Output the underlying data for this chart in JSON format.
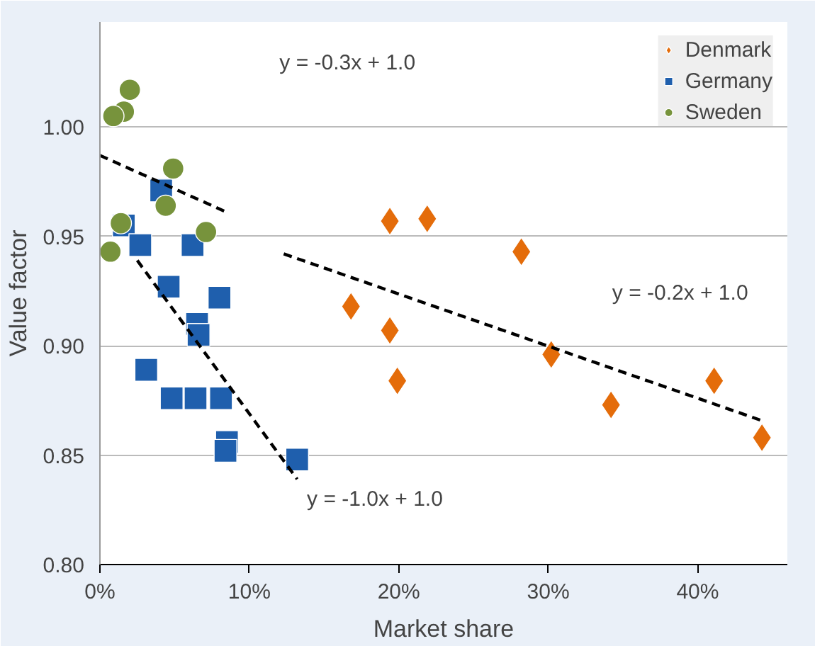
{
  "chart_data": {
    "type": "scatter",
    "xlabel": "Market share",
    "ylabel": "Value factor",
    "xlim": [
      0,
      46
    ],
    "ylim": [
      0.8,
      1.048
    ],
    "xticks": [
      {
        "value": 0,
        "label": "0%"
      },
      {
        "value": 10,
        "label": "10%"
      },
      {
        "value": 20,
        "label": "20%"
      },
      {
        "value": 30,
        "label": "30%"
      },
      {
        "value": 40,
        "label": "40%"
      }
    ],
    "yticks": [
      {
        "value": 0.8,
        "label": "0.80"
      },
      {
        "value": 0.85,
        "label": "0.85"
      },
      {
        "value": 0.9,
        "label": "0.90"
      },
      {
        "value": 0.95,
        "label": "0.95"
      },
      {
        "value": 1.0,
        "label": "1.00"
      }
    ],
    "grid": "y",
    "legend": "top right",
    "series": [
      {
        "name": "Denmark",
        "color": "#e46c0a",
        "marker": "diamond",
        "x": [
          16.8,
          19.4,
          21.9,
          28.2,
          19.4,
          19.9,
          30.2,
          34.2,
          41.1,
          44.3
        ],
        "values": [
          0.918,
          0.957,
          0.958,
          0.943,
          0.907,
          0.884,
          0.896,
          0.873,
          0.884,
          0.858
        ]
      },
      {
        "name": "Germany",
        "color": "#1f5fad",
        "marker": "square",
        "x": [
          1.6,
          2.7,
          4.1,
          4.6,
          6.2,
          6.5,
          8.0,
          3.1,
          4.8,
          6.4,
          8.1,
          8.5,
          8.4,
          13.2,
          6.6
        ],
        "values": [
          0.955,
          0.946,
          0.971,
          0.927,
          0.946,
          0.91,
          0.922,
          0.889,
          0.876,
          0.876,
          0.876,
          0.856,
          0.852,
          0.848,
          0.905
        ]
      },
      {
        "name": "Sweden",
        "color": "#77933c",
        "marker": "circle",
        "x": [
          2.0,
          1.6,
          0.9,
          4.9,
          4.4,
          1.4,
          0.7,
          7.1
        ],
        "values": [
          1.017,
          1.007,
          1.005,
          0.981,
          0.964,
          0.956,
          0.943,
          0.952
        ]
      },
      {
        "type": "line",
        "color": "#000000",
        "line_style": "dashed",
        "marker": "none",
        "x": [
          0,
          8.5
        ],
        "values": [
          0.987,
          0.961
        ]
      },
      {
        "type": "line",
        "color": "#000000",
        "line_style": "dashed",
        "marker": "none",
        "x": [
          12.3,
          44.2
        ],
        "values": [
          0.942,
          0.866
        ]
      },
      {
        "type": "line",
        "color": "#000000",
        "line_style": "dashed",
        "marker": "none",
        "x": [
          2.5,
          13.2
        ],
        "values": [
          0.939,
          0.839
        ]
      }
    ],
    "annotations": [
      "y = -0.3x + 1.0",
      "y = -0.2x + 1.0",
      "y = -1.0x + 1.0"
    ]
  }
}
